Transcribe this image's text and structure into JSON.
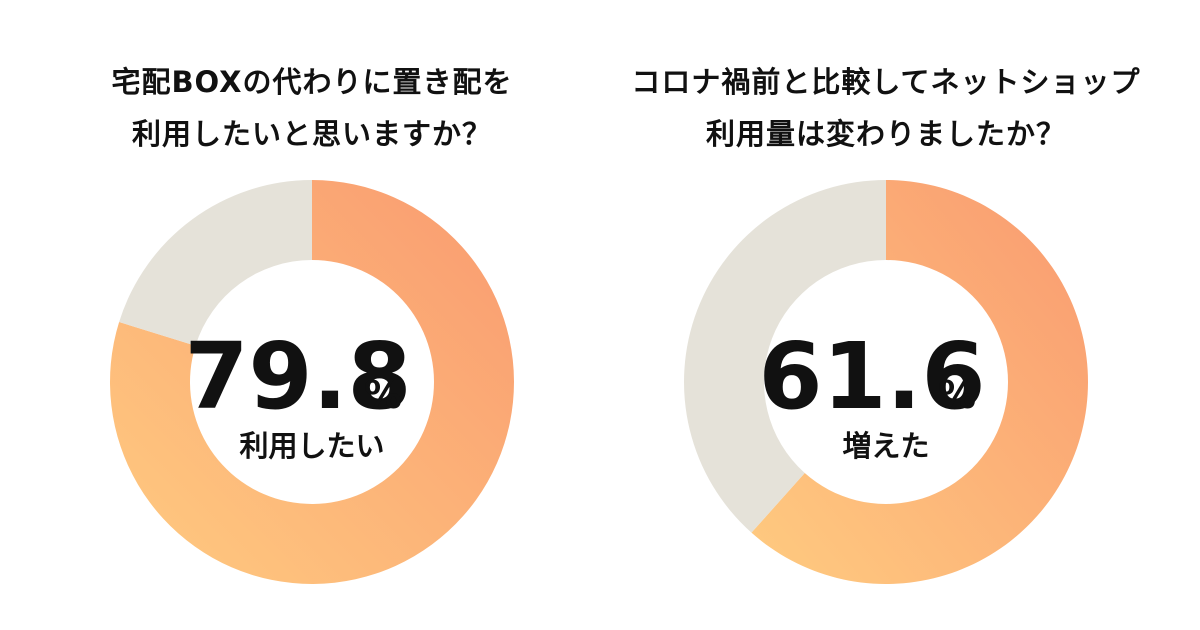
{
  "colors": {
    "orange_light": "#FFCB80",
    "orange_dark": "#F99A70",
    "remainder": "#E5E2D9",
    "text": "#111111"
  },
  "chart_data": [
    {
      "type": "pie",
      "title_lines": [
        "宅配BOXの代わりに置き配を",
        "利用したいと思いますか？"
      ],
      "value": 79.8,
      "remainder": 20.2,
      "value_text": "79.8",
      "unit": "%",
      "center_label": "利用したい"
    },
    {
      "type": "pie",
      "title_lines": [
        "コロナ禍前と比較してネットショップ",
        "利用量は変わりましたか？"
      ],
      "value": 61.6,
      "remainder": 38.4,
      "value_text": "61.6",
      "unit": "%",
      "center_label": "増えた"
    }
  ]
}
